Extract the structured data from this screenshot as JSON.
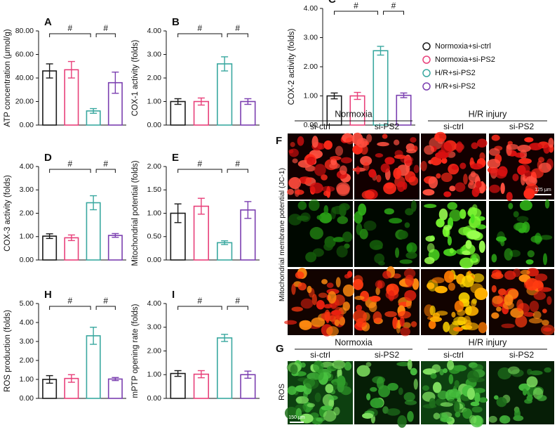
{
  "legend": {
    "items": [
      {
        "name": "Normoxia+si-ctrl",
        "color": "#1a1a1a"
      },
      {
        "name": "Normoxia+si-PS2",
        "color": "#e8407a"
      },
      {
        "name": "H/R+si-PS2",
        "color": "#3aa8a0"
      },
      {
        "name": "H/R+si-PS2",
        "color": "#7b3fb0"
      }
    ]
  },
  "chart_data": [
    {
      "type": "bar",
      "panel": "A",
      "y_label": "ATP concentration (μmol/g)",
      "values": [
        46,
        47,
        12,
        36
      ],
      "errors": [
        6,
        7,
        2,
        9
      ],
      "ylim": [
        0,
        80
      ],
      "yticks": [
        {
          "value": 0,
          "label": "0.00"
        },
        {
          "value": 20,
          "label": "20.00"
        },
        {
          "value": 40,
          "label": "40.00"
        },
        {
          "value": 60,
          "label": "60.00"
        },
        {
          "value": 80,
          "label": "80.00"
        }
      ],
      "annotations": [
        {
          "text": "#",
          "from": 0,
          "to": 2
        },
        {
          "text": "#",
          "from": 2,
          "to": 3
        }
      ]
    },
    {
      "type": "bar",
      "panel": "B",
      "y_label": "COX-1 activity (folds)",
      "values": [
        1.0,
        1.0,
        2.6,
        1.0
      ],
      "errors": [
        0.12,
        0.15,
        0.3,
        0.12
      ],
      "ylim": [
        0,
        4
      ],
      "yticks": [
        {
          "value": 0,
          "label": "0.00"
        },
        {
          "value": 1,
          "label": "1.00"
        },
        {
          "value": 2,
          "label": "2.00"
        },
        {
          "value": 3,
          "label": "3.00"
        },
        {
          "value": 4,
          "label": "4.00"
        }
      ],
      "annotations": [
        {
          "text": "#",
          "from": 0,
          "to": 2
        },
        {
          "text": "#",
          "from": 2,
          "to": 3
        }
      ]
    },
    {
      "type": "bar",
      "panel": "C",
      "y_label": "COX-2 activity (folds)",
      "values": [
        1.0,
        1.0,
        2.55,
        1.02
      ],
      "errors": [
        0.1,
        0.12,
        0.15,
        0.08
      ],
      "ylim": [
        0,
        4
      ],
      "yticks": [
        {
          "value": 0,
          "label": "0.00"
        },
        {
          "value": 1,
          "label": "1.00"
        },
        {
          "value": 2,
          "label": "2.00"
        },
        {
          "value": 3,
          "label": "3.00"
        },
        {
          "value": 4,
          "label": "4.00"
        }
      ],
      "annotations": [
        {
          "text": "#",
          "from": 0,
          "to": 2
        },
        {
          "text": "#",
          "from": 2,
          "to": 3
        }
      ]
    },
    {
      "type": "bar",
      "panel": "D",
      "y_label": "COX-3 activity (folds)",
      "values": [
        1.02,
        0.95,
        2.45,
        1.05
      ],
      "errors": [
        0.1,
        0.12,
        0.3,
        0.08
      ],
      "ylim": [
        0,
        4
      ],
      "yticks": [
        {
          "value": 0,
          "label": "0.00"
        },
        {
          "value": 1,
          "label": "1.00"
        },
        {
          "value": 2,
          "label": "2.00"
        },
        {
          "value": 3,
          "label": "3.00"
        },
        {
          "value": 4,
          "label": "4.00"
        }
      ],
      "annotations": [
        {
          "text": "#",
          "from": 0,
          "to": 2
        },
        {
          "text": "#",
          "from": 2,
          "to": 3
        }
      ]
    },
    {
      "type": "bar",
      "panel": "E",
      "y_label": "Mitochondrial potential (folds)",
      "values": [
        1.0,
        1.15,
        0.37,
        1.07
      ],
      "errors": [
        0.2,
        0.17,
        0.04,
        0.18
      ],
      "ylim": [
        0,
        2
      ],
      "yticks": [
        {
          "value": 0,
          "label": "0.00"
        },
        {
          "value": 0.5,
          "label": "0.50"
        },
        {
          "value": 1,
          "label": "1.00"
        },
        {
          "value": 1.5,
          "label": "1.50"
        },
        {
          "value": 2,
          "label": "2.00"
        }
      ],
      "annotations": [
        {
          "text": "#",
          "from": 0,
          "to": 2
        },
        {
          "text": "#",
          "from": 2,
          "to": 3
        }
      ]
    },
    {
      "type": "bar",
      "panel": "H",
      "y_label": "ROS production (folds)",
      "values": [
        1.0,
        1.05,
        3.3,
        1.02
      ],
      "errors": [
        0.2,
        0.2,
        0.45,
        0.08
      ],
      "ylim": [
        0,
        5
      ],
      "yticks": [
        {
          "value": 0,
          "label": "0.00"
        },
        {
          "value": 1,
          "label": "1.00"
        },
        {
          "value": 2,
          "label": "2.00"
        },
        {
          "value": 3,
          "label": "3.00"
        },
        {
          "value": 4,
          "label": "4.00"
        },
        {
          "value": 5,
          "label": "5.00"
        }
      ],
      "annotations": [
        {
          "text": "#",
          "from": 0,
          "to": 2
        },
        {
          "text": "#",
          "from": 2,
          "to": 3
        }
      ]
    },
    {
      "type": "bar",
      "panel": "I",
      "y_label": "mPTP opening rate (folds)",
      "values": [
        1.05,
        1.02,
        2.55,
        1.0
      ],
      "errors": [
        0.12,
        0.15,
        0.15,
        0.15
      ],
      "ylim": [
        0,
        4
      ],
      "yticks": [
        {
          "value": 0,
          "label": "0.00"
        },
        {
          "value": 1,
          "label": "1.00"
        },
        {
          "value": 2,
          "label": "2.00"
        },
        {
          "value": 3,
          "label": "3.00"
        },
        {
          "value": 4,
          "label": "4.00"
        }
      ],
      "annotations": [
        {
          "text": "#",
          "from": 0,
          "to": 2
        },
        {
          "text": "#",
          "from": 2,
          "to": 3
        }
      ]
    }
  ],
  "panel_f": {
    "label": "F",
    "groups": [
      "Normoxia",
      "H/R injury"
    ],
    "columns": [
      "si-ctrl",
      "si-PS2",
      "si-ctrl",
      "si-PS2"
    ],
    "row_label": "Mitochondrial membrane potential (JC-1)",
    "scale_bar": "125 μm"
  },
  "panel_g": {
    "label": "G",
    "groups": [
      "Normoxia",
      "H/R injury"
    ],
    "columns": [
      "si-ctrl",
      "si-PS2",
      "si-ctrl",
      "si-PS2"
    ],
    "row_label": "ROS",
    "scale_bar": "150 μm"
  }
}
